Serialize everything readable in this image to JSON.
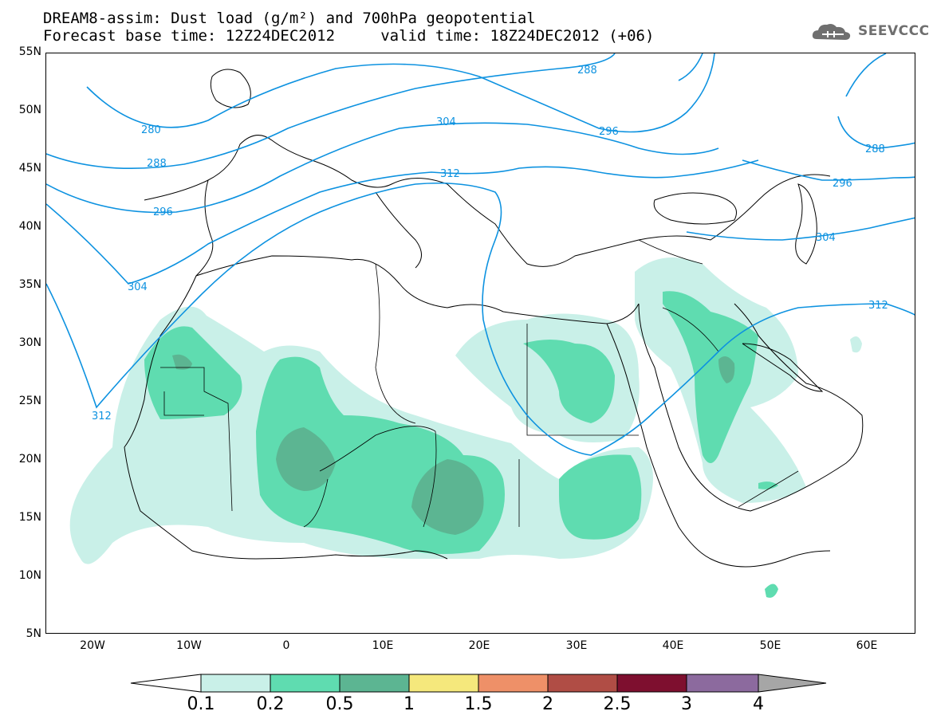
{
  "title": {
    "line1": "DREAM8-assim: Dust load (g/m²) and 700hPa geopotential",
    "line2": "Forecast base time: 12Z24DEC2012     valid time: 18Z24DEC2012 (+06)"
  },
  "logo": {
    "text": "SEEVCCC",
    "icon": "cloud-icon"
  },
  "map": {
    "lat_labels": [
      "55N",
      "50N",
      "45N",
      "40N",
      "35N",
      "30N",
      "25N",
      "20N",
      "15N",
      "10N",
      "5N"
    ],
    "lon_labels": [
      "20W",
      "10W",
      "0",
      "10E",
      "20E",
      "30E",
      "40E",
      "50E",
      "60E"
    ],
    "contour_labels": [
      "280",
      "288",
      "296",
      "304",
      "312",
      "288",
      "296",
      "304",
      "312",
      "288",
      "296",
      "304",
      "312"
    ],
    "colors": {
      "contour": "#0d92e0",
      "dust_01": "#c9f0e8",
      "dust_02": "#5fdcb0",
      "dust_05": "#5cb592",
      "coast": "#000000"
    }
  },
  "colorbar": {
    "colors": [
      "#ffffff",
      "#c9f0e8",
      "#5fdcb0",
      "#5cb592",
      "#f5e87c",
      "#ee9068",
      "#b04d45",
      "#7e0f2f",
      "#8c6a9e",
      "#a6a6a6"
    ],
    "labels": [
      "0.1",
      "0.2",
      "0.5",
      "1",
      "1.5",
      "2",
      "2.5",
      "3",
      "4"
    ]
  }
}
